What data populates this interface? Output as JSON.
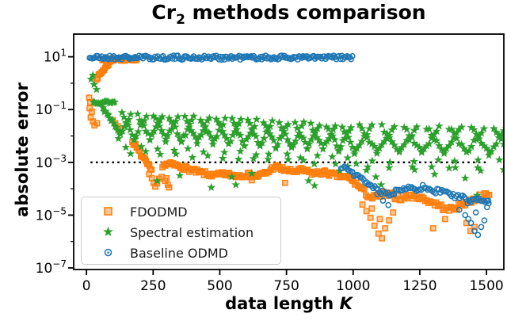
{
  "title": {
    "prefix": "Cr",
    "sub": "2",
    "rest": " methods comparison"
  },
  "axes": {
    "x": {
      "label_prefix": "data length ",
      "label_var": "K",
      "ticks": [
        0,
        250,
        500,
        750,
        1000,
        1250,
        1500
      ],
      "range": [
        -48,
        1565
      ]
    },
    "y": {
      "label": "absolute error",
      "major_exponents": [
        1,
        -1,
        -3,
        -5,
        -7
      ],
      "minor_exponents": [
        0,
        -2,
        -4,
        -6
      ],
      "log_range": [
        -7.06,
        1.86
      ]
    }
  },
  "reference_line": {
    "log_value": -3,
    "k_start": 15,
    "k_end": 1500,
    "color": "#000000",
    "style": "dotted"
  },
  "legend": {
    "items": [
      {
        "label": "FDODMD",
        "marker": "square",
        "color": "#ff7f0e"
      },
      {
        "label": "Spectral estimation",
        "marker": "star",
        "color": "#2ca02c"
      },
      {
        "label": "Baseline ODMD",
        "marker": "circle",
        "color": "#1f77b4"
      }
    ]
  },
  "chart_data": {
    "type": "scatter",
    "x_axis": "data length K",
    "y_axis": "absolute error (log scale)",
    "note": "y values stored as log10(absolute error); segments describe dense point runs read from the figure",
    "series": [
      {
        "name": "FDODMD",
        "color": "#ff7f0e",
        "marker": "square",
        "seed": 7,
        "segments": [
          {
            "type": "points",
            "pts": [
              [
                10,
                -0.55
              ],
              [
                14,
                -0.72
              ],
              [
                12,
                -0.95
              ],
              [
                20,
                -1.08
              ],
              [
                16,
                -1.3
              ],
              [
                24,
                -1.45
              ],
              [
                30,
                -1.6
              ],
              [
                40,
                -1.52
              ],
              [
                98,
                -1.4
              ],
              [
                108,
                -1.52
              ],
              [
                118,
                -1.64
              ],
              [
                128,
                -1.75
              ]
            ]
          },
          {
            "type": "ramp",
            "k0": 38,
            "k1": 92,
            "step": 4,
            "log0": 0.18,
            "log1": 0.85,
            "jitter": 0.05
          },
          {
            "type": "run",
            "k0": 60,
            "k1": 190,
            "step": 3,
            "log": 0.9,
            "jitter": 0.05
          },
          {
            "type": "ramp",
            "k0": 172,
            "k1": 245,
            "step": 4,
            "log0": -2.2,
            "log1": -3.35,
            "jitter": 0.09
          },
          {
            "type": "points",
            "pts": [
              [
                235,
                -3.45
              ],
              [
                245,
                -3.6
              ],
              [
                252,
                -3.78
              ],
              [
                258,
                -3.92
              ],
              [
                265,
                -3.8
              ],
              [
                272,
                -3.62
              ],
              [
                282,
                -3.55
              ],
              [
                295,
                -3.7
              ],
              [
                305,
                -3.85
              ],
              [
                300,
                -3.6
              ],
              [
                310,
                -3.95
              ]
            ]
          },
          {
            "type": "anchors",
            "step": 5,
            "jitter": 0.09,
            "anchors": [
              [
                285,
                -3.1
              ],
              [
                320,
                -3.08
              ],
              [
                360,
                -3.18
              ],
              [
                400,
                -3.32
              ],
              [
                440,
                -3.42
              ],
              [
                480,
                -3.5
              ],
              [
                520,
                -3.44
              ],
              [
                560,
                -3.5
              ],
              [
                600,
                -3.46
              ],
              [
                640,
                -3.52
              ],
              [
                680,
                -3.38
              ],
              [
                705,
                -3.15
              ],
              [
                730,
                -3.25
              ],
              [
                770,
                -3.35
              ],
              [
                810,
                -3.3
              ],
              [
                850,
                -3.42
              ],
              [
                890,
                -3.38
              ],
              [
                930,
                -3.48
              ],
              [
                965,
                -3.55
              ],
              [
                1000,
                -3.66
              ]
            ]
          },
          {
            "type": "anchors",
            "step": 6,
            "jitter": 0.11,
            "anchors": [
              [
                1000,
                -3.7
              ],
              [
                1025,
                -3.95
              ],
              [
                1050,
                -4.2
              ],
              [
                1070,
                -4.35
              ],
              [
                1090,
                -4.3
              ],
              [
                1115,
                -4.2
              ],
              [
                1145,
                -4.25
              ],
              [
                1175,
                -4.35
              ],
              [
                1205,
                -4.3
              ],
              [
                1235,
                -4.25
              ],
              [
                1265,
                -4.4
              ],
              [
                1295,
                -4.5
              ],
              [
                1325,
                -4.65
              ],
              [
                1355,
                -4.8
              ],
              [
                1385,
                -4.7
              ],
              [
                1415,
                -4.55
              ],
              [
                1445,
                -4.45
              ],
              [
                1475,
                -4.3
              ],
              [
                1510,
                -4.25
              ]
            ]
          },
          {
            "type": "points",
            "pts": [
              [
                1035,
                -4.6
              ],
              [
                1050,
                -4.85
              ],
              [
                1065,
                -5.1
              ],
              [
                1080,
                -5.4
              ],
              [
                1095,
                -5.7
              ],
              [
                1108,
                -5.88
              ],
              [
                1120,
                -5.5
              ],
              [
                1135,
                -5.2
              ],
              [
                1150,
                -4.9
              ],
              [
                1070,
                -4.75
              ],
              [
                1100,
                -5.15
              ],
              [
                1300,
                -5.5
              ],
              [
                1345,
                -5.15
              ],
              [
                1425,
                -5.3
              ],
              [
                1440,
                -5.6
              ],
              [
                1455,
                -5.45
              ],
              [
                620,
                -3.68
              ],
              [
                745,
                -3.78
              ]
            ]
          }
        ]
      },
      {
        "name": "Spectral estimation",
        "color": "#2ca02c",
        "marker": "star",
        "seed": 13,
        "segments": [
          {
            "type": "points",
            "pts": [
              [
                17,
                0.15
              ],
              [
                24,
                0.3
              ],
              [
                28,
                -0.05
              ],
              [
                38,
                -0.24
              ]
            ]
          },
          {
            "type": "run",
            "k0": 26,
            "k1": 107,
            "step": 5,
            "log": -0.72,
            "jitter": 0.05
          },
          {
            "type": "ramp",
            "k0": 62,
            "k1": 122,
            "step": 5,
            "log0": -0.95,
            "log1": -1.78,
            "jitter": 0.08
          },
          {
            "type": "periodic",
            "k0": 120,
            "k1": 1005,
            "period": 59,
            "pts_per_leg": 7,
            "center0": -1.62,
            "center1": -2.12,
            "amp": 0.45,
            "jitter": 0.07,
            "low_offsets": [
              -0.78,
              -1.0
            ]
          },
          {
            "type": "periodic",
            "k0": 1005,
            "k1": 1515,
            "period": 84,
            "pts_per_leg": 8,
            "center0": -2.12,
            "center1": -2.18,
            "amp": 0.48,
            "jitter": 0.08,
            "low_offsets": [
              -0.8,
              -1.05
            ]
          },
          {
            "type": "points",
            "pts": [
              [
                265,
                -3.7
              ],
              [
                350,
                -3.5
              ],
              [
                468,
                -3.95
              ],
              [
                545,
                -3.55
              ],
              [
                560,
                -3.85
              ],
              [
                620,
                -3.42
              ],
              [
                833,
                -3.7
              ],
              [
                855,
                -3.88
              ],
              [
                950,
                -3.32
              ],
              [
                1012,
                -3.05
              ],
              [
                1050,
                -3.3
              ],
              [
                1085,
                -3.55
              ],
              [
                1105,
                -3.85
              ],
              [
                1230,
                -3.28
              ],
              [
                1305,
                -3.45
              ],
              [
                1360,
                -3.22
              ],
              [
                1420,
                -3.6
              ],
              [
                1465,
                -4.25
              ],
              [
                1478,
                -3.32
              ]
            ]
          }
        ]
      },
      {
        "name": "Baseline ODMD",
        "color": "#1f77b4",
        "marker": "circle",
        "seed": 21,
        "segments": [
          {
            "type": "run",
            "k0": 12,
            "k1": 1000,
            "step": 5,
            "log": 0.97,
            "jitter": 0.08
          },
          {
            "type": "anchors",
            "step": 6,
            "jitter": 0.1,
            "anchors": [
              [
                955,
                -3.2
              ],
              [
                985,
                -3.3
              ],
              [
                1010,
                -3.5
              ],
              [
                1035,
                -3.65
              ],
              [
                1060,
                -3.8
              ],
              [
                1085,
                -4.0
              ],
              [
                1110,
                -4.15
              ],
              [
                1135,
                -4.25
              ],
              [
                1160,
                -4.1
              ],
              [
                1185,
                -3.95
              ],
              [
                1210,
                -3.9
              ],
              [
                1235,
                -4.0
              ],
              [
                1260,
                -3.95
              ],
              [
                1285,
                -4.05
              ],
              [
                1310,
                -4.1
              ],
              [
                1335,
                -4.05
              ],
              [
                1360,
                -4.2
              ],
              [
                1385,
                -4.3
              ],
              [
                1410,
                -4.35
              ],
              [
                1435,
                -4.5
              ],
              [
                1460,
                -4.4
              ],
              [
                1485,
                -4.45
              ],
              [
                1510,
                -4.35
              ]
            ]
          },
          {
            "type": "points",
            "pts": [
              [
                1090,
                -4.2
              ],
              [
                1112,
                -4.45
              ],
              [
                1132,
                -4.62
              ],
              [
                1398,
                -4.8
              ],
              [
                1420,
                -5.0
              ],
              [
                1432,
                -5.15
              ],
              [
                1442,
                -5.3
              ],
              [
                1455,
                -5.6
              ],
              [
                1468,
                -5.75
              ],
              [
                1480,
                -5.45
              ],
              [
                1492,
                -5.2
              ],
              [
                1502,
                -4.7
              ],
              [
                1508,
                -4.55
              ],
              [
                1460,
                -4.9
              ]
            ]
          }
        ]
      }
    ]
  }
}
